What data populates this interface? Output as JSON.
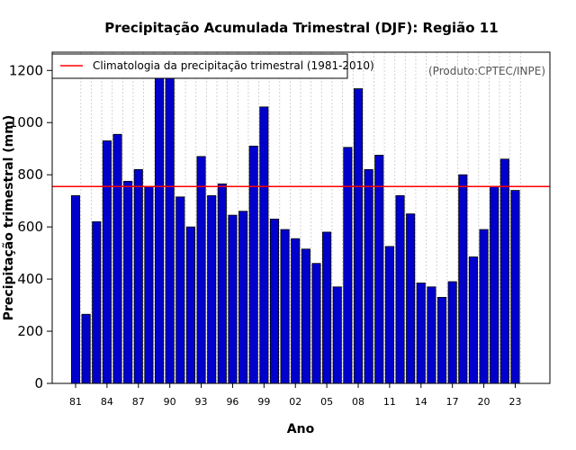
{
  "chart_data": {
    "type": "bar",
    "title": "Precipitação Acumulada Trimestral (DJF): Região 11",
    "xlabel": "Ano",
    "ylabel": "Precipitação trimestral (mm)",
    "source_note": "(Produto:CPTEC/INPE)",
    "legend": {
      "placement": "top-left",
      "entries": [
        {
          "label": "Climatologia da precipitação trimestral (1981-2010)",
          "color": "#ff0000"
        }
      ]
    },
    "climatology_value": 755,
    "ylim": [
      0,
      1270
    ],
    "yticks": [
      0,
      200,
      400,
      600,
      800,
      1000,
      1200
    ],
    "ytick_labels": [
      "0",
      "200",
      "400",
      "600",
      "800",
      "1000",
      "1200"
    ],
    "grid": true,
    "bar_color": "#0000cc",
    "line_color": "#ff0000",
    "years": [
      1981,
      1982,
      1983,
      1984,
      1985,
      1986,
      1987,
      1988,
      1989,
      1990,
      1991,
      1992,
      1993,
      1994,
      1995,
      1996,
      1997,
      1998,
      1999,
      2000,
      2001,
      2002,
      2003,
      2004,
      2005,
      2006,
      2007,
      2008,
      2009,
      2010,
      2011,
      2012,
      2013,
      2014,
      2015,
      2016,
      2017,
      2018,
      2019,
      2020,
      2021,
      2022,
      2023
    ],
    "values": [
      720,
      265,
      620,
      930,
      955,
      775,
      820,
      755,
      1180,
      1190,
      715,
      600,
      870,
      720,
      765,
      645,
      660,
      910,
      1060,
      630,
      590,
      555,
      515,
      460,
      580,
      370,
      905,
      1130,
      820,
      875,
      525,
      720,
      650,
      385,
      370,
      330,
      390,
      800,
      485,
      590,
      755,
      860,
      740
    ],
    "xtick_labels": [
      {
        "year": 1981,
        "label": "81"
      },
      {
        "year": 1984,
        "label": "84"
      },
      {
        "year": 1987,
        "label": "87"
      },
      {
        "year": 1990,
        "label": "90"
      },
      {
        "year": 1993,
        "label": "93"
      },
      {
        "year": 1996,
        "label": "96"
      },
      {
        "year": 1999,
        "label": "99"
      },
      {
        "year": 2002,
        "label": "02"
      },
      {
        "year": 2005,
        "label": "05"
      },
      {
        "year": 2008,
        "label": "08"
      },
      {
        "year": 2011,
        "label": "11"
      },
      {
        "year": 2014,
        "label": "14"
      },
      {
        "year": 2017,
        "label": "17"
      },
      {
        "year": 2020,
        "label": "20"
      },
      {
        "year": 2023,
        "label": "23"
      }
    ]
  }
}
